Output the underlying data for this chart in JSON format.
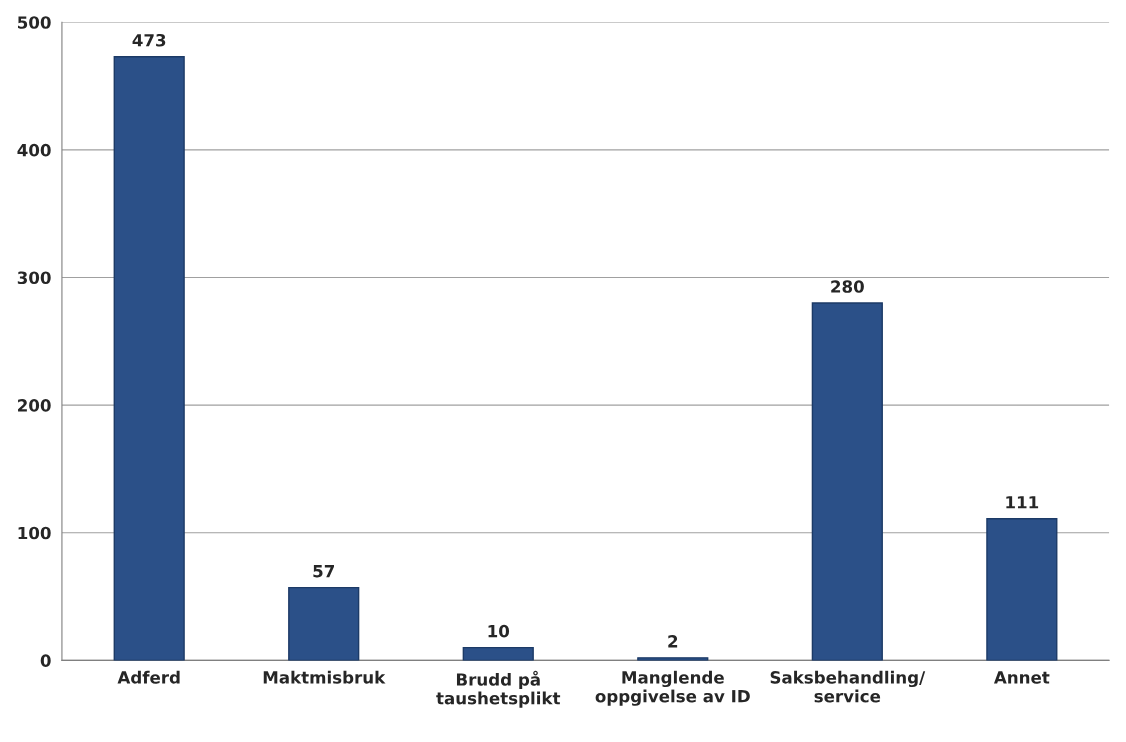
{
  "chart_data": {
    "type": "bar",
    "categories": [
      "Adferd",
      "Maktmisbruk",
      "Brudd på\ntaushetsplikt",
      "Manglende\noppgivelse av ID",
      "Saksbehandling/\nservice",
      "Annet"
    ],
    "values": [
      473,
      57,
      10,
      2,
      280,
      111
    ],
    "color": "#2b5088",
    "ylim": [
      0,
      500
    ],
    "yticks": [
      0,
      100,
      200,
      300,
      400,
      500
    ],
    "grid": "y",
    "data_labels": true
  }
}
